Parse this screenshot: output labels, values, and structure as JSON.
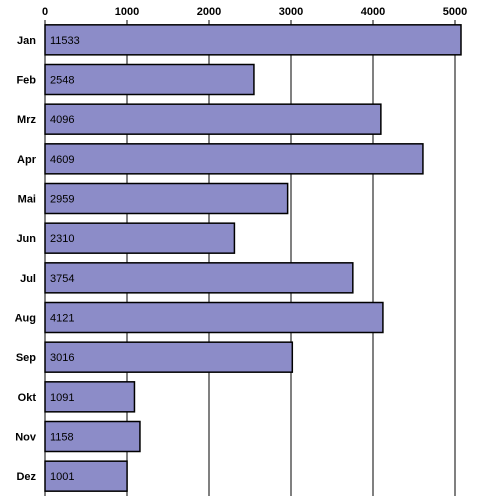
{
  "chart_data": {
    "type": "bar",
    "orientation": "horizontal",
    "categories": [
      "Jan",
      "Feb",
      "Mrz",
      "Apr",
      "Mai",
      "Jun",
      "Jul",
      "Aug",
      "Sep",
      "Okt",
      "Nov",
      "Dez"
    ],
    "values": [
      11533,
      2548,
      4096,
      4609,
      2959,
      2310,
      3754,
      4121,
      3016,
      1091,
      1158,
      1001
    ],
    "data_labels": [
      "11533",
      "2548",
      "4096",
      "4609",
      "2959",
      "2310",
      "3754",
      "4121",
      "3016",
      "1091",
      "1158",
      "1001"
    ],
    "xlim": [
      0,
      5000
    ],
    "xticks": [
      0,
      1000,
      2000,
      3000,
      4000,
      5000
    ],
    "xtick_labels": [
      "0",
      "1000",
      "2000",
      "3000",
      "4000",
      "5000"
    ],
    "x_axis_position": "top",
    "grid": "vertical",
    "legend": "none",
    "title": "",
    "xlabel": "",
    "ylabel": "",
    "colors": {
      "bar_fill": "#8C8CC8",
      "bar_edge": "#000000",
      "grid": "#000000"
    }
  }
}
